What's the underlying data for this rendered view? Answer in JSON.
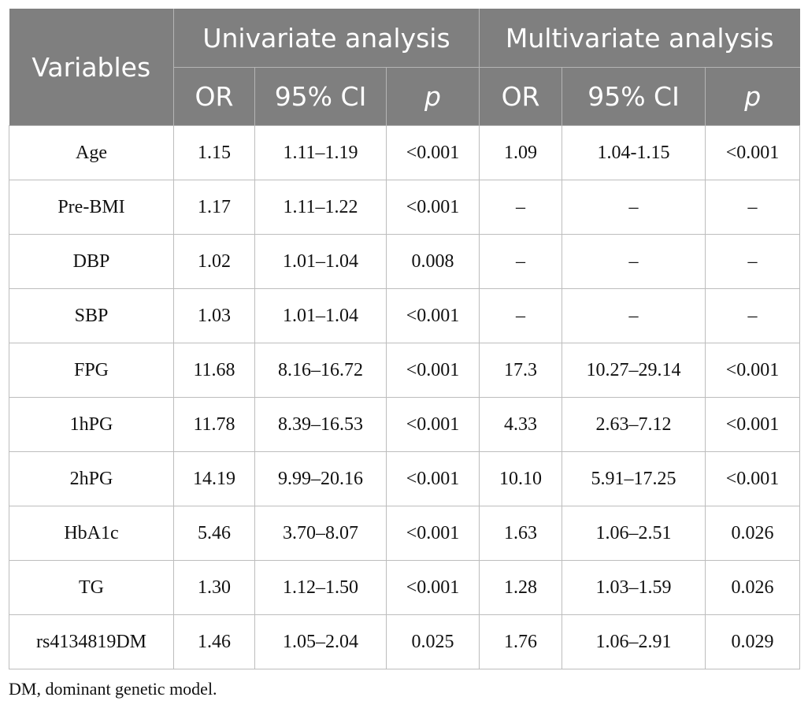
{
  "table": {
    "header": {
      "variables": "Variables",
      "univariate": "Univariate analysis",
      "multivariate": "Multivariate analysis",
      "sub": [
        "OR",
        "95% CI",
        "p",
        "OR",
        "95% CI",
        "p"
      ]
    },
    "rows": [
      [
        "Age",
        "1.15",
        "1.11–1.19",
        "<0.001",
        "1.09",
        "1.04-1.15",
        "<0.001"
      ],
      [
        "Pre-BMI",
        "1.17",
        "1.11–1.22",
        "<0.001",
        "–",
        "–",
        "–"
      ],
      [
        "DBP",
        "1.02",
        "1.01–1.04",
        "0.008",
        "–",
        "–",
        "–"
      ],
      [
        "SBP",
        "1.03",
        "1.01–1.04",
        "<0.001",
        "–",
        "–",
        "–"
      ],
      [
        "FPG",
        "11.68",
        "8.16–16.72",
        "<0.001",
        "17.3",
        "10.27–29.14",
        "<0.001"
      ],
      [
        "1hPG",
        "11.78",
        "8.39–16.53",
        "<0.001",
        "4.33",
        "2.63–7.12",
        "<0.001"
      ],
      [
        "2hPG",
        "14.19",
        "9.99–20.16",
        "<0.001",
        "10.10",
        "5.91–17.25",
        "<0.001"
      ],
      [
        "HbA1c",
        "5.46",
        "3.70–8.07",
        "<0.001",
        "1.63",
        "1.06–2.51",
        "0.026"
      ],
      [
        "TG",
        "1.30",
        "1.12–1.50",
        "<0.001",
        "1.28",
        "1.03–1.59",
        "0.026"
      ],
      [
        "rs4134819DM",
        "1.46",
        "1.05–2.04",
        "0.025",
        "1.76",
        "1.06–2.91",
        "0.029"
      ]
    ]
  },
  "footnote": "DM, dominant genetic model.",
  "colors": {
    "header_bg": "#7f7f7f",
    "header_text": "#ffffff",
    "grid": "#bdbdbd"
  }
}
